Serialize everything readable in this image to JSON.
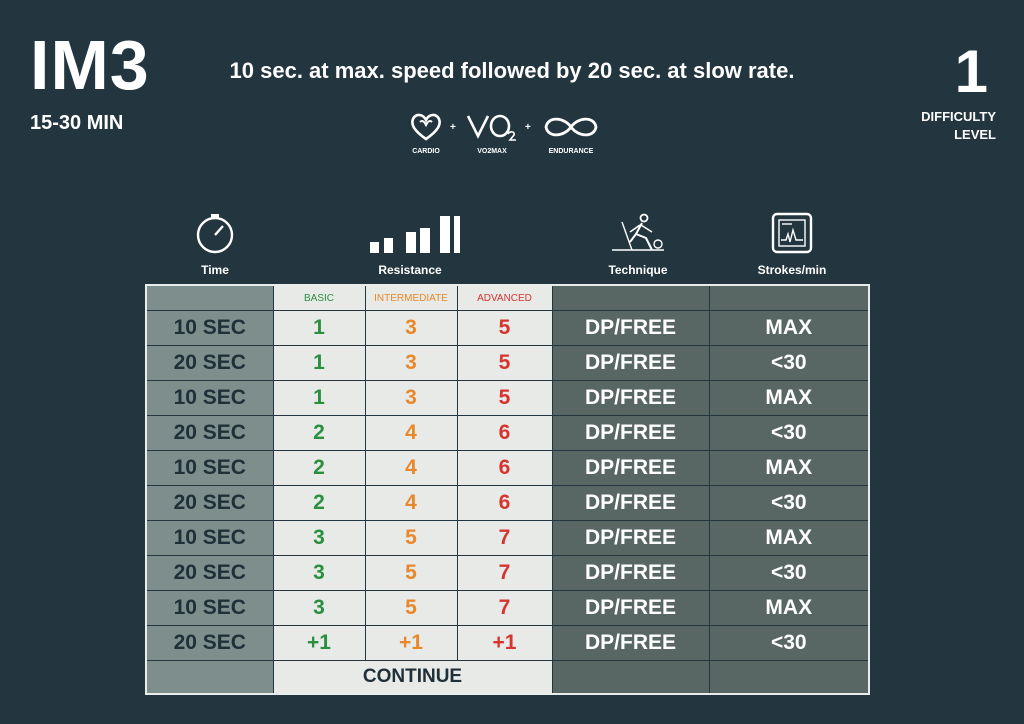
{
  "header": {
    "code": "IM3",
    "duration": "15-30 MIN",
    "description": "10 sec. at max. speed followed by 20 sec. at slow rate.",
    "difficulty_value": "1",
    "difficulty_label_1": "DIFFICULTY",
    "difficulty_label_2": "LEVEL"
  },
  "benefits": [
    {
      "icon": "heart-icon",
      "label": "CARDIO"
    },
    {
      "icon": "vo2-icon",
      "label": "VO2MAX"
    },
    {
      "icon": "infinity-icon",
      "label": "ENDURANCE"
    }
  ],
  "benefit_separator": "+",
  "columns": {
    "time": {
      "icon": "stopwatch-icon",
      "label": "Time"
    },
    "resistance": {
      "icon": "resistance-bars-icon",
      "label": "Resistance"
    },
    "technique": {
      "icon": "skier-icon",
      "label": "Technique"
    },
    "strokes": {
      "icon": "monitor-icon",
      "label": "Strokes/min"
    }
  },
  "levels": {
    "basic": "BASIC",
    "intermediate": "INTERMEDIATE",
    "advanced": "ADVANCED"
  },
  "rows": [
    {
      "time": "10 SEC",
      "basic": "1",
      "intermediate": "3",
      "advanced": "5",
      "technique": "DP/FREE",
      "strokes": "MAX"
    },
    {
      "time": "20 SEC",
      "basic": "1",
      "intermediate": "3",
      "advanced": "5",
      "technique": "DP/FREE",
      "strokes": "<30"
    },
    {
      "time": "10 SEC",
      "basic": "1",
      "intermediate": "3",
      "advanced": "5",
      "technique": "DP/FREE",
      "strokes": "MAX"
    },
    {
      "time": "20 SEC",
      "basic": "2",
      "intermediate": "4",
      "advanced": "6",
      "technique": "DP/FREE",
      "strokes": "<30"
    },
    {
      "time": "10 SEC",
      "basic": "2",
      "intermediate": "4",
      "advanced": "6",
      "technique": "DP/FREE",
      "strokes": "MAX"
    },
    {
      "time": "20 SEC",
      "basic": "2",
      "intermediate": "4",
      "advanced": "6",
      "technique": "DP/FREE",
      "strokes": "<30"
    },
    {
      "time": "10 SEC",
      "basic": "3",
      "intermediate": "5",
      "advanced": "7",
      "technique": "DP/FREE",
      "strokes": "MAX"
    },
    {
      "time": "20 SEC",
      "basic": "3",
      "intermediate": "5",
      "advanced": "7",
      "technique": "DP/FREE",
      "strokes": "<30"
    },
    {
      "time": "10 SEC",
      "basic": "3",
      "intermediate": "5",
      "advanced": "7",
      "technique": "DP/FREE",
      "strokes": "MAX"
    },
    {
      "time": "20 SEC",
      "basic": "+1",
      "intermediate": "+1",
      "advanced": "+1",
      "technique": "DP/FREE",
      "strokes": "<30"
    }
  ],
  "footer": {
    "continue": "CONTINUE"
  },
  "colors": {
    "background": "#233640",
    "basic": "#2a8f3f",
    "intermediate": "#e9882b",
    "advanced": "#d6342f",
    "time_col": "#7e8e8c",
    "level_cols": "#e8eae8",
    "right_cols": "#596764"
  }
}
